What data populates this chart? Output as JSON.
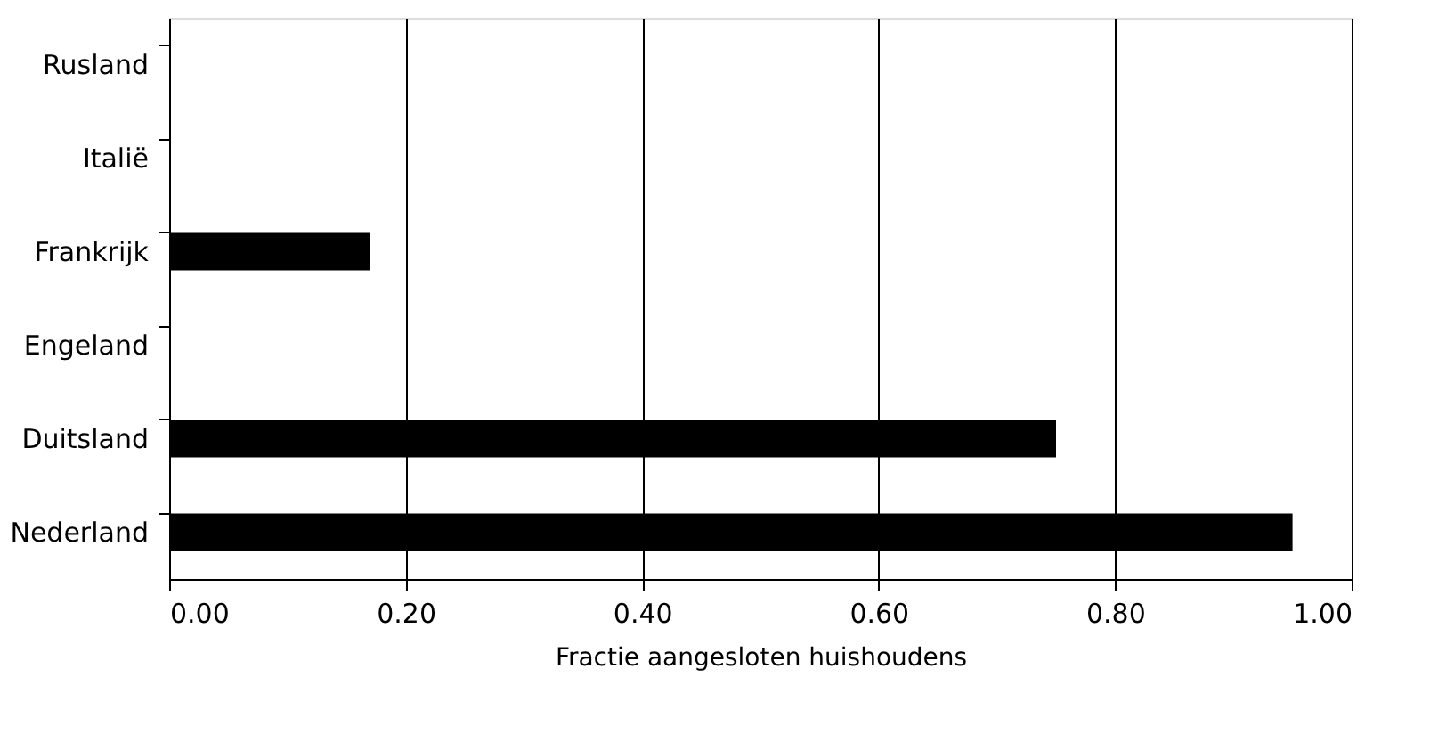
{
  "chart_data": {
    "type": "bar",
    "orientation": "horizontal",
    "xlabel": "Fractie aangesloten huishoudens",
    "categories": [
      "Rusland",
      "Italië",
      "Frankrijk",
      "Engeland",
      "Duitsland",
      "Nederland"
    ],
    "values": [
      0,
      0,
      0.17,
      0,
      0.75,
      0.95
    ],
    "color": "#000000",
    "xlim": [
      0,
      1
    ],
    "xticks": [
      {
        "value": 0,
        "label": "0.00"
      },
      {
        "value": 0.2,
        "label": "0.20"
      },
      {
        "value": 0.4,
        "label": "0.40"
      },
      {
        "value": 0.6,
        "label": "0.60"
      },
      {
        "value": 0.8,
        "label": "0.80"
      },
      {
        "value": 1,
        "label": "1.00"
      }
    ],
    "grid": "x"
  }
}
